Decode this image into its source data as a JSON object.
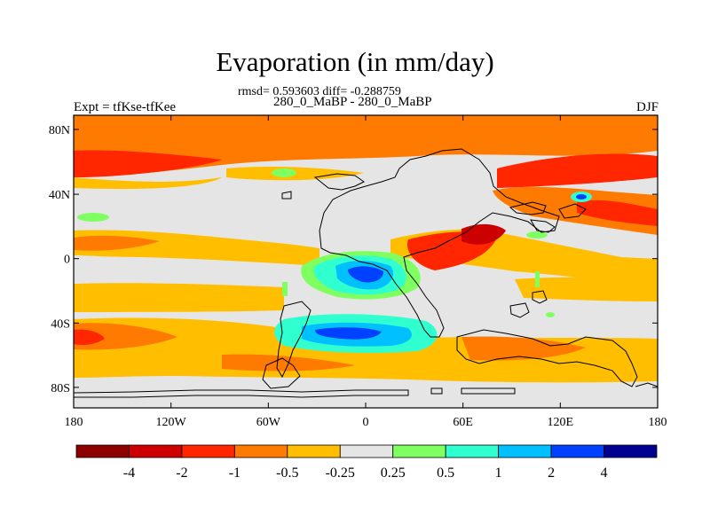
{
  "title": "Evaporation (in mm/day)",
  "stats_text": "rmsd= 0.593603 diff= -0.288759",
  "subtitle": "280_0_MaBP - 280_0_MaBP",
  "left_label": "Expt = tfKse-tfKee",
  "right_label": "DJF",
  "y_ticks": [
    "80N",
    "40N",
    "0",
    "40S",
    "80S"
  ],
  "x_ticks": [
    "180",
    "120W",
    "60W",
    "0",
    "60E",
    "120E",
    "180"
  ],
  "colorbar": {
    "colors": [
      "#8c0000",
      "#cc0000",
      "#ff2600",
      "#ff7a00",
      "#ffbf00",
      "#e5e5e5",
      "#80ff60",
      "#30ffd0",
      "#00c0ff",
      "#0040ff",
      "#000090"
    ],
    "labels": [
      "-4",
      "-2",
      "-1",
      "-0.5",
      "-0.25",
      "0.25",
      "0.5",
      "1",
      "2",
      "4"
    ]
  }
}
